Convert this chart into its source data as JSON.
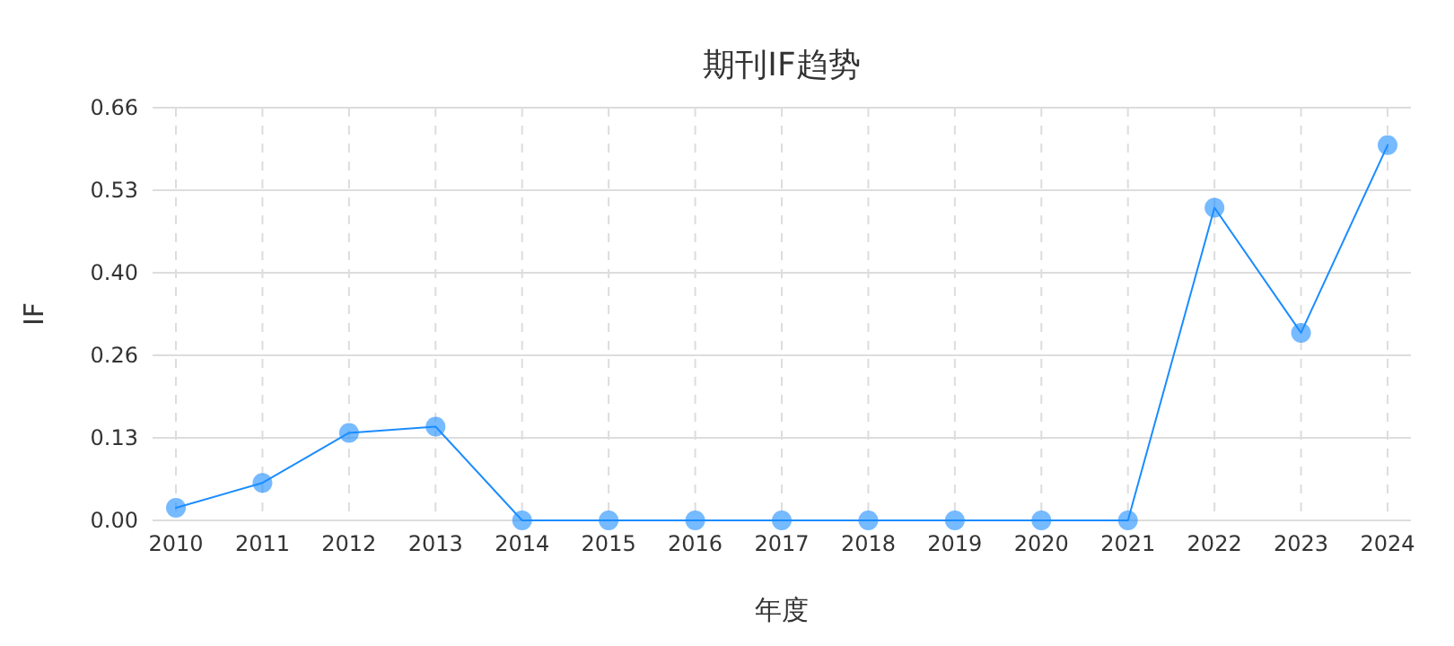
{
  "chart_data": {
    "type": "line",
    "title": "期刊IF趋势",
    "xlabel": "年度",
    "ylabel": "IF",
    "categories": [
      "2010",
      "2011",
      "2012",
      "2013",
      "2014",
      "2015",
      "2016",
      "2017",
      "2018",
      "2019",
      "2020",
      "2021",
      "2022",
      "2023",
      "2024"
    ],
    "series": [
      {
        "color": "#1a8cff",
        "values": [
          0.02,
          0.06,
          0.14,
          0.15,
          0,
          0,
          0,
          0,
          0,
          0,
          0,
          0,
          0.5,
          0.3,
          0.6
        ]
      }
    ],
    "ylim": [
      0,
      0.66
    ],
    "yticks": [
      {
        "value": 0,
        "label": "0.00"
      },
      {
        "value": 0.132,
        "label": "0.13"
      },
      {
        "value": 0.264,
        "label": "0.26"
      },
      {
        "value": 0.396,
        "label": "0.40"
      },
      {
        "value": 0.528,
        "label": "0.53"
      },
      {
        "value": 0.66,
        "label": "0.66"
      }
    ],
    "grid": true,
    "marker": "circle",
    "line_style": "solid"
  }
}
